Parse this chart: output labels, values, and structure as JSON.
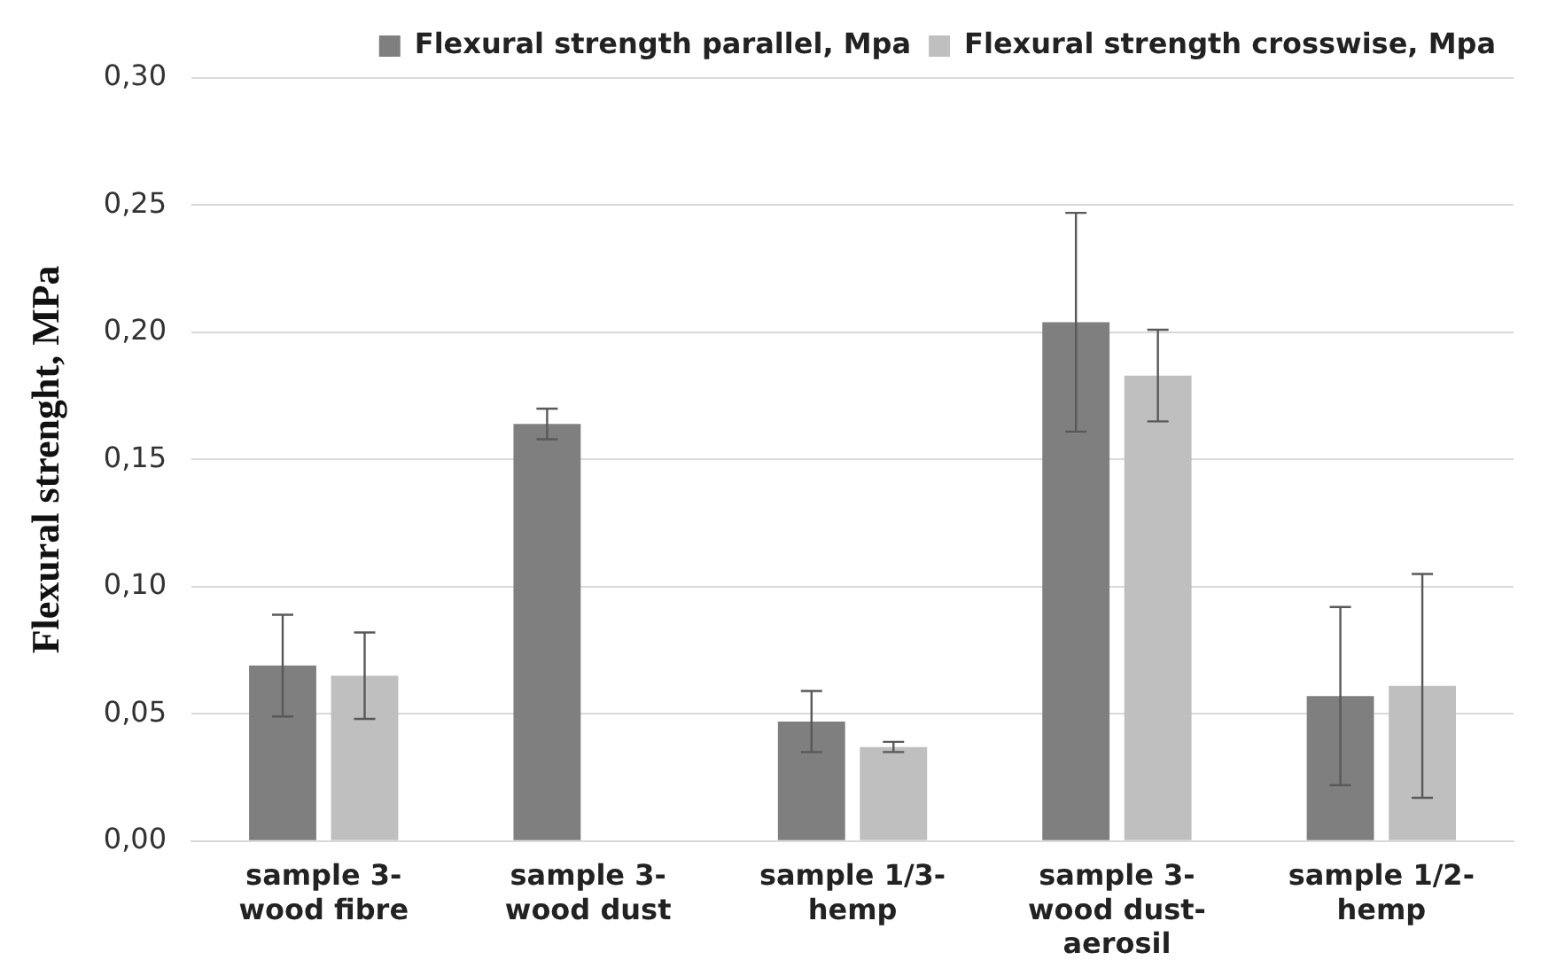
{
  "chart_data": {
    "type": "bar",
    "ylabel": "Flexural strenght, MPa",
    "categories": [
      "sample 3-wood fibre",
      "sample 3-wood dust",
      "sample 1/3-hemp",
      "sample 3-wood dust-aerosil",
      "sample 1/2-hemp"
    ],
    "series": [
      {
        "name": "Flexural strength parallel, Mpa",
        "color": "#7f7f7f",
        "values": [
          0.069,
          0.164,
          0.047,
          0.204,
          0.057
        ],
        "errors": [
          0.02,
          0.006,
          0.012,
          0.043,
          0.035
        ]
      },
      {
        "name": "Flexural strength crosswise, Mpa",
        "color": "#bfbfbf",
        "values": [
          0.065,
          null,
          0.037,
          0.183,
          0.061
        ],
        "errors": [
          0.017,
          null,
          0.002,
          0.018,
          0.044
        ]
      }
    ],
    "ylim": [
      0,
      0.3
    ],
    "yticks": [
      {
        "value": 0,
        "label": "0,00"
      },
      {
        "value": 0.05,
        "label": "0,05"
      },
      {
        "value": 0.1,
        "label": "0,10"
      },
      {
        "value": 0.15,
        "label": "0,15"
      },
      {
        "value": 0.2,
        "label": "0,20"
      },
      {
        "value": 0.25,
        "label": "0,25"
      },
      {
        "value": 0.3,
        "label": "0,30"
      }
    ],
    "grid": "y",
    "legend": "top"
  }
}
